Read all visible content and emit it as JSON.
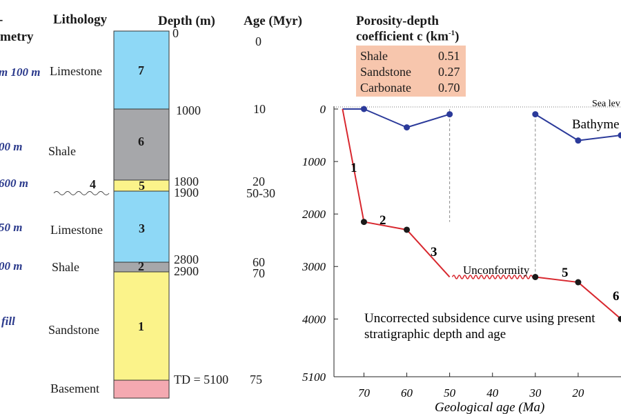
{
  "column": {
    "headers": {
      "bathymetry": "metry",
      "lithology": "Lithology",
      "depth": "Depth (m)",
      "age": "Age (Myr)"
    },
    "bathymetry_labels": [
      "m 100 m",
      "00 m",
      "600 m",
      "50 m",
      "00 m",
      "fill"
    ],
    "lithology_labels": [
      "Limestone",
      "Shale",
      "Limestone",
      "Shale",
      "Sandstone",
      "Basement"
    ],
    "unit_numbers": [
      "7",
      "6",
      "5",
      "4",
      "3",
      "2",
      "1"
    ],
    "depth_labels": [
      "0",
      "1000",
      "1800",
      "1900",
      "2800",
      "2900",
      "TD = 5100"
    ],
    "age_labels": [
      "0",
      "10",
      "20",
      "50-30",
      "60",
      "70",
      "75"
    ],
    "colors": {
      "limestone": "#8ed8f6",
      "shale": "#a6a7aa",
      "sandstone": "#fbf38a",
      "basement": "#f4a9b1"
    }
  },
  "porosity": {
    "title_line1": "Porosity-depth",
    "title_line2": "coefficient c (km",
    "title_sup": "-1",
    "title_close": ")",
    "rows": [
      {
        "name": "Shale",
        "value": "0.51"
      },
      {
        "name": "Sandstone",
        "value": "0.27"
      },
      {
        "name": "Carbonate",
        "value": "0.70"
      }
    ]
  },
  "chart_data": {
    "type": "line",
    "xlabel": "Geological age (Ma)",
    "x_ticks": [
      "70",
      "60",
      "50",
      "40",
      "30",
      "20"
    ],
    "y_ticks": [
      "0",
      "1000",
      "2000",
      "3000",
      "4000",
      "5100"
    ],
    "xlim": [
      77,
      10
    ],
    "ylim": [
      0,
      5100
    ],
    "y_inverted": true,
    "sea_level_label": "Sea lev",
    "bathymetry_label": "Bathyme",
    "unconformity_label": "Unconformity",
    "annotation_line1": "Uncorrected subsidence curve using present",
    "annotation_line2": "stratigraphic depth and age",
    "segment_labels": [
      "1",
      "2",
      "3",
      "5",
      "6"
    ],
    "series": [
      {
        "role": "bathymetry",
        "color": "#2b3a9a",
        "points": [
          [
            75,
            0
          ],
          [
            70,
            0
          ],
          [
            60,
            350
          ],
          [
            50,
            100
          ],
          [
            30,
            100
          ],
          [
            20,
            600
          ],
          [
            10,
            500
          ]
        ]
      },
      {
        "role": "subsidence",
        "color": "#d8272e",
        "points": [
          [
            75,
            0
          ],
          [
            70,
            2150
          ],
          [
            60,
            2300
          ],
          [
            50,
            3200
          ],
          [
            30,
            3200
          ],
          [
            20,
            3300
          ],
          [
            10,
            4000
          ]
        ]
      }
    ]
  }
}
